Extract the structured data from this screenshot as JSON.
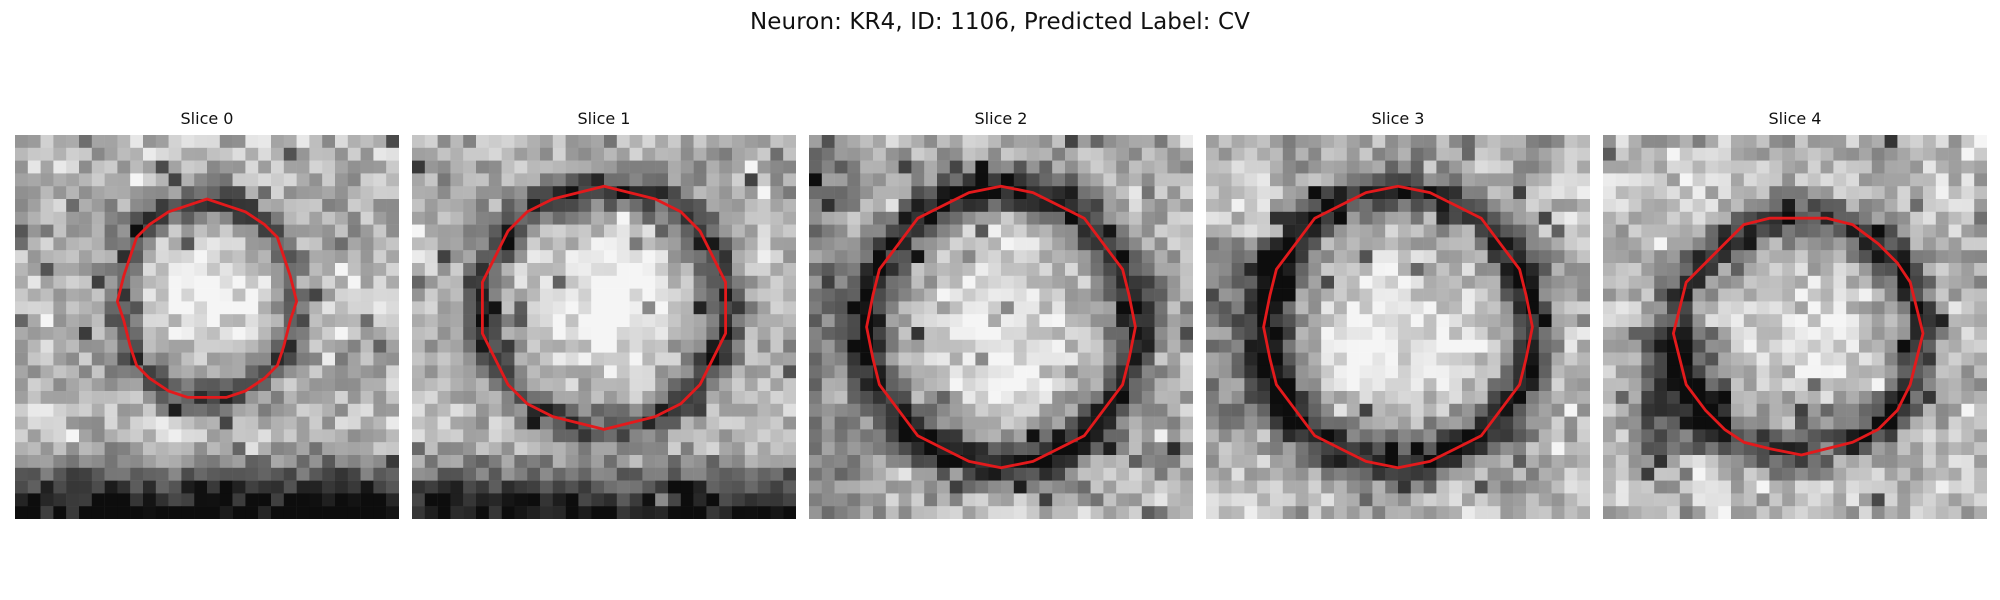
{
  "figure": {
    "title": "Neuron: KR4, ID: 1106, Predicted Label: CV"
  },
  "colors": {
    "background": "#ffffff",
    "contour": "#e31a1c",
    "image_colormap": "grayscale"
  },
  "slices": [
    {
      "title": "Slice 0",
      "contour_center": [
        0.5,
        0.43
      ],
      "contour_radius": [
        0.23,
        0.26
      ],
      "ring_strength": 0.42,
      "inner_brightness": 0.32,
      "lower_dark_band": 0.68
    },
    {
      "title": "Slice 1",
      "contour_center": [
        0.5,
        0.45
      ],
      "contour_radius": [
        0.32,
        0.31
      ],
      "ring_strength": 0.48,
      "inner_brightness": 0.38,
      "lower_dark_band": 0.6
    },
    {
      "title": "Slice 2",
      "contour_center": [
        0.5,
        0.5
      ],
      "contour_radius": [
        0.35,
        0.36
      ],
      "ring_strength": 0.62,
      "inner_brightness": 0.3,
      "lower_dark_band": 0.0
    },
    {
      "title": "Slice 3",
      "contour_center": [
        0.5,
        0.5
      ],
      "contour_radius": [
        0.35,
        0.36
      ],
      "ring_strength": 0.58,
      "inner_brightness": 0.3,
      "lower_dark_band": 0.0
    },
    {
      "title": "Slice 4",
      "contour_center": [
        0.51,
        0.52
      ],
      "contour_radius": [
        0.32,
        0.31
      ],
      "ring_strength": 0.5,
      "inner_brightness": 0.18,
      "lower_dark_band": 0.0
    }
  ]
}
